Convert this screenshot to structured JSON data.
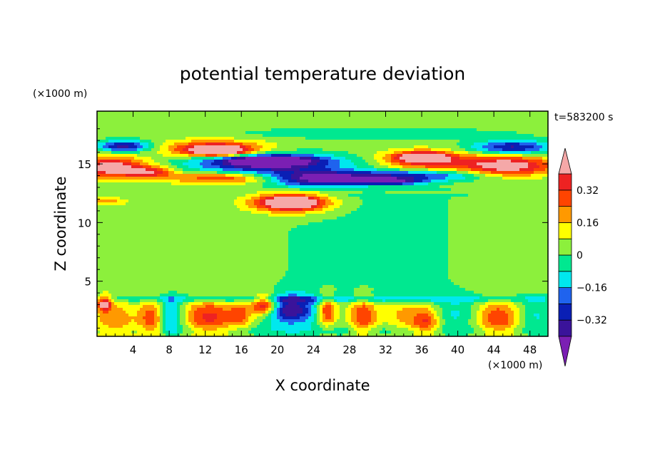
{
  "chart_data": {
    "type": "heatmap",
    "title": "potential temperature deviation",
    "xlabel": "X coordinate",
    "ylabel": "Z coordinate",
    "x_unit": "(×1000 m)",
    "y_unit": "(×1000 m)",
    "time_label": "t=583200 s",
    "xlim": [
      0,
      50
    ],
    "ylim": [
      0.3,
      19.5
    ],
    "x_ticks": [
      4,
      8,
      12,
      16,
      20,
      24,
      28,
      32,
      36,
      40,
      44,
      48
    ],
    "y_ticks": [
      5,
      10,
      15
    ],
    "colorbar": {
      "levels": [
        -0.4,
        -0.32,
        -0.24,
        -0.16,
        -0.08,
        0,
        0.08,
        0.16,
        0.24,
        0.32,
        0.4
      ],
      "tick_labels": [
        "0.32",
        "0.16",
        "0",
        "−0.16",
        "−0.32"
      ],
      "tick_values": [
        0.32,
        0.16,
        0,
        -0.16,
        -0.32
      ],
      "colors": [
        "#7b1fb3",
        "#3a139a",
        "#0a1fb5",
        "#1f63ee",
        "#00e8ee",
        "#00e890",
        "#8cf03c",
        "#ffff00",
        "#ff9900",
        "#ff4400",
        "#ee2222",
        "#f5a8a8"
      ]
    },
    "background_level": 0.04,
    "features": [
      {
        "cx": 1.5,
        "cy": 14.7,
        "rx": 3.8,
        "ry": 0.9,
        "v": 0.45
      },
      {
        "cx": 6.0,
        "cy": 14.3,
        "rx": 2.5,
        "ry": 0.5,
        "v": 0.3
      },
      {
        "cx": 3.0,
        "cy": 16.5,
        "rx": 3.0,
        "ry": 0.5,
        "v": -0.4
      },
      {
        "cx": 13.0,
        "cy": 16.3,
        "rx": 5.5,
        "ry": 0.7,
        "v": 0.36
      },
      {
        "cx": 13.5,
        "cy": 16.1,
        "rx": 3.0,
        "ry": 0.4,
        "v": 0.45
      },
      {
        "cx": 19.0,
        "cy": 15.0,
        "rx": 8.5,
        "ry": 0.9,
        "v": -0.44
      },
      {
        "cx": 19.0,
        "cy": 15.3,
        "rx": 5.0,
        "ry": 0.4,
        "v": -0.36
      },
      {
        "cx": 14.0,
        "cy": 13.8,
        "rx": 6.0,
        "ry": 0.5,
        "v": 0.3
      },
      {
        "cx": 24.0,
        "cy": 13.6,
        "rx": 5.0,
        "ry": 0.6,
        "v": -0.38
      },
      {
        "cx": 33.0,
        "cy": 14.0,
        "rx": 11.0,
        "ry": 0.5,
        "v": -0.34
      },
      {
        "cx": 32.0,
        "cy": 13.5,
        "rx": 4.0,
        "ry": 0.3,
        "v": -0.4
      },
      {
        "cx": 21.5,
        "cy": 11.7,
        "rx": 3.5,
        "ry": 0.6,
        "v": 0.44
      },
      {
        "cx": 21.5,
        "cy": 11.7,
        "rx": 4.8,
        "ry": 1.0,
        "v": 0.26
      },
      {
        "cx": 36.5,
        "cy": 15.3,
        "rx": 5.0,
        "ry": 0.8,
        "v": 0.34
      },
      {
        "cx": 36.0,
        "cy": 15.6,
        "rx": 2.5,
        "ry": 0.4,
        "v": 0.44
      },
      {
        "cx": 45.5,
        "cy": 14.8,
        "rx": 5.0,
        "ry": 0.9,
        "v": 0.46
      },
      {
        "cx": 46.0,
        "cy": 16.4,
        "rx": 4.5,
        "ry": 0.6,
        "v": -0.38
      },
      {
        "cx": 30.5,
        "cy": 17.6,
        "rx": 16.0,
        "ry": 0.5,
        "v": -0.1
      },
      {
        "cx": 25.0,
        "cy": 12.8,
        "rx": 22.0,
        "ry": 0.4,
        "v": -0.06
      },
      {
        "cx": 1.0,
        "cy": 11.8,
        "rx": 2.0,
        "ry": 0.3,
        "v": 0.18
      },
      {
        "cx": 2.0,
        "cy": 1.6,
        "rx": 2.5,
        "ry": 1.8,
        "v": 0.18
      },
      {
        "cx": 0.8,
        "cy": 3.1,
        "rx": 0.8,
        "ry": 0.6,
        "v": 0.42
      },
      {
        "cx": 6.3,
        "cy": 1.8,
        "rx": 1.5,
        "ry": 1.6,
        "v": 0.3
      },
      {
        "cx": 8.0,
        "cy": 2.0,
        "rx": 1.5,
        "ry": 1.5,
        "v": -0.3
      },
      {
        "cx": 12.5,
        "cy": 1.9,
        "rx": 3.0,
        "ry": 1.6,
        "v": 0.3
      },
      {
        "cx": 16.0,
        "cy": 2.2,
        "rx": 1.2,
        "ry": 1.2,
        "v": 0.18
      },
      {
        "cx": 18.5,
        "cy": 3.0,
        "rx": 1.4,
        "ry": 0.9,
        "v": 0.44
      },
      {
        "cx": 21.5,
        "cy": 2.5,
        "rx": 3.0,
        "ry": 1.2,
        "v": -0.42
      },
      {
        "cx": 25.5,
        "cy": 2.5,
        "rx": 1.0,
        "ry": 1.3,
        "v": 0.34
      },
      {
        "cx": 29.5,
        "cy": 2.0,
        "rx": 1.5,
        "ry": 1.6,
        "v": 0.28
      },
      {
        "cx": 34.0,
        "cy": 2.0,
        "rx": 2.0,
        "ry": 1.5,
        "v": 0.14
      },
      {
        "cx": 36.5,
        "cy": 1.5,
        "rx": 1.5,
        "ry": 1.2,
        "v": 0.28
      },
      {
        "cx": 40.0,
        "cy": 2.2,
        "rx": 2.5,
        "ry": 1.3,
        "v": -0.14
      },
      {
        "cx": 44.5,
        "cy": 1.8,
        "rx": 2.5,
        "ry": 1.5,
        "v": 0.28
      },
      {
        "cx": 48.5,
        "cy": 2.0,
        "rx": 2.0,
        "ry": 1.4,
        "v": -0.14
      },
      {
        "cx": 25.0,
        "cy": 3.5,
        "rx": 30.0,
        "ry": 0.35,
        "v": -0.2
      },
      {
        "cx": 25.0,
        "cy": 0.8,
        "rx": 30.0,
        "ry": 0.5,
        "v": -0.09
      }
    ]
  }
}
